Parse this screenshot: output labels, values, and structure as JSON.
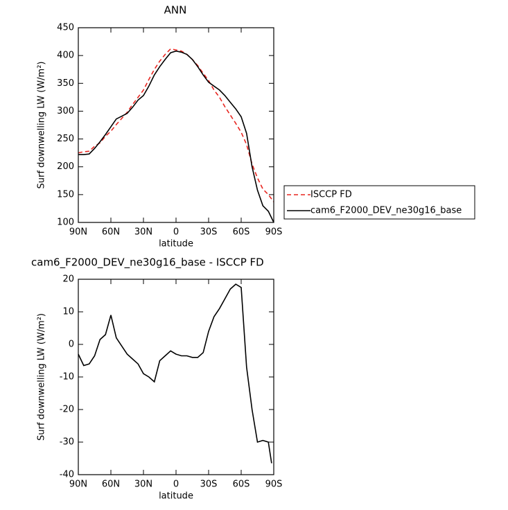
{
  "chart_data": [
    {
      "type": "line",
      "title": "ANN",
      "xlabel": "latitude",
      "ylabel": "Surf downwelling LW (W/m²)",
      "x": [
        90,
        85,
        80,
        75,
        70,
        65,
        60,
        55,
        50,
        45,
        40,
        35,
        30,
        25,
        20,
        15,
        10,
        5,
        0,
        -5,
        -10,
        -15,
        -20,
        -25,
        -30,
        -35,
        -40,
        -45,
        -50,
        -55,
        -60,
        -65,
        -70,
        -75,
        -80,
        -85,
        -90
      ],
      "xlim": [
        90,
        -90
      ],
      "xticks": [
        {
          "value": 90,
          "label": "90N"
        },
        {
          "value": 60,
          "label": "60N"
        },
        {
          "value": 30,
          "label": "30N"
        },
        0,
        {
          "value": -30,
          "label": "30S"
        },
        {
          "value": -60,
          "label": "60S"
        },
        {
          "value": -90,
          "label": "90S"
        }
      ],
      "ylim": [
        100,
        450
      ],
      "yticks": [
        100,
        150,
        200,
        250,
        300,
        350,
        400,
        450
      ],
      "legend": "right",
      "series": [
        {
          "name": "ISCCP FD",
          "color": "#e8251f",
          "dash": true,
          "values": [
            225,
            227,
            228,
            237,
            243,
            255,
            264,
            276,
            287,
            298,
            312,
            325,
            338,
            357,
            375,
            390,
            402,
            412,
            410,
            408,
            402,
            393,
            382,
            368,
            355,
            338,
            325,
            308,
            293,
            278,
            262,
            240,
            205,
            180,
            160,
            150,
            137
          ]
        },
        {
          "name": "cam6_F2000_DEV_ne30g16_base",
          "color": "#000000",
          "dash": false,
          "values": [
            222,
            222,
            223,
            233,
            245,
            258,
            272,
            286,
            291,
            296,
            307,
            320,
            328,
            345,
            365,
            380,
            393,
            405,
            408,
            406,
            402,
            393,
            380,
            365,
            352,
            345,
            338,
            328,
            316,
            304,
            290,
            260,
            200,
            158,
            130,
            120,
            100
          ]
        }
      ]
    },
    {
      "type": "line",
      "title": "cam6_F2000_DEV_ne30g16_base - ISCCP FD",
      "xlabel": "latitude",
      "ylabel": "Surf downwelling LW (W/m²)",
      "x": [
        90,
        85,
        80,
        75,
        70,
        65,
        60,
        55,
        50,
        45,
        40,
        35,
        30,
        25,
        20,
        15,
        10,
        5,
        0,
        -5,
        -10,
        -15,
        -20,
        -25,
        -30,
        -35,
        -40,
        -45,
        -50,
        -55,
        -60,
        -65,
        -70,
        -75,
        -80,
        -85,
        -88
      ],
      "xlim": [
        90,
        -90
      ],
      "xticks": [
        {
          "value": 90,
          "label": "90N"
        },
        {
          "value": 60,
          "label": "60N"
        },
        {
          "value": 30,
          "label": "30N"
        },
        0,
        {
          "value": -30,
          "label": "30S"
        },
        {
          "value": -60,
          "label": "60S"
        },
        {
          "value": -90,
          "label": "90S"
        }
      ],
      "ylim": [
        -40,
        20
      ],
      "yticks": [
        -40,
        -30,
        -20,
        -10,
        0,
        10,
        20
      ],
      "series": [
        {
          "color": "#000000",
          "dash": false,
          "values": [
            -3,
            -6.5,
            -6,
            -3.5,
            1.5,
            3,
            9,
            2,
            -0.5,
            -3,
            -4.5,
            -6,
            -9,
            -10,
            -11.5,
            -5,
            -3.5,
            -2,
            -3,
            -3.5,
            -3.5,
            -4,
            -4,
            -2.5,
            4,
            8.5,
            11,
            14,
            17,
            18.5,
            17.5,
            -7,
            -20,
            -30,
            -29.5,
            -30,
            -36.5
          ]
        }
      ]
    }
  ]
}
